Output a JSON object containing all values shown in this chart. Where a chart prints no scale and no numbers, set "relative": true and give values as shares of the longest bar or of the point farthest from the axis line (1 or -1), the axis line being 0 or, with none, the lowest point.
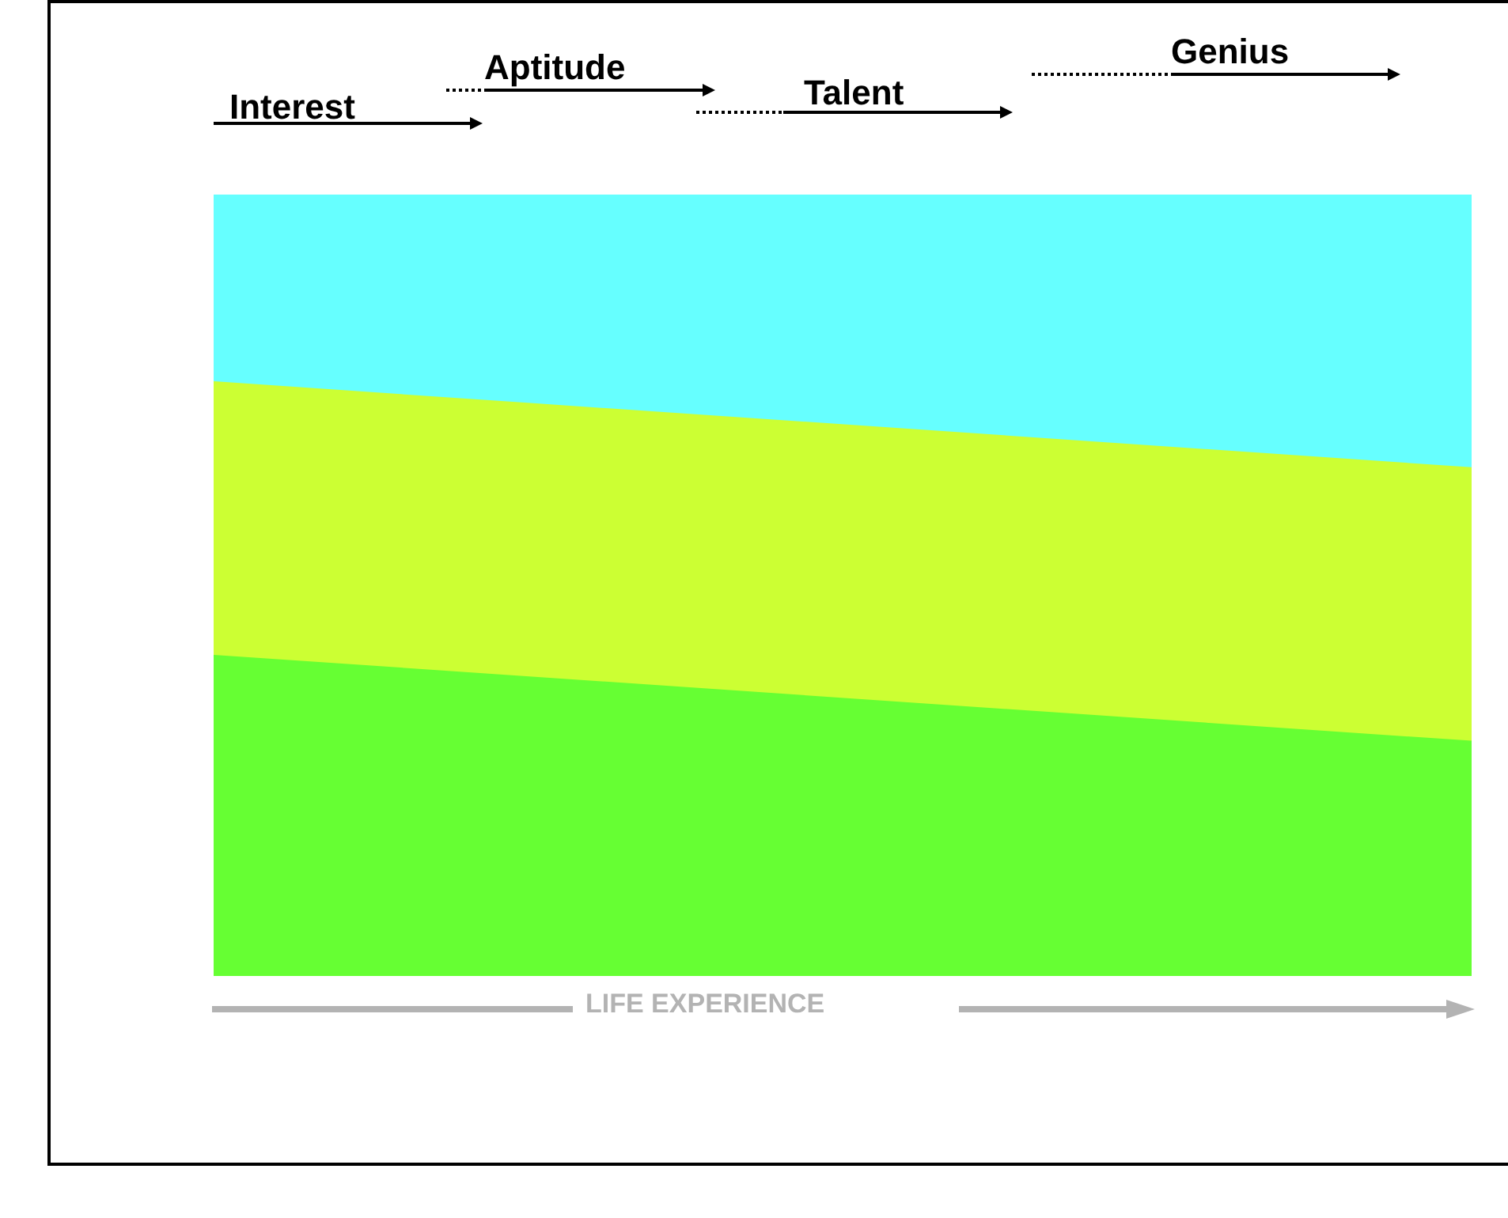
{
  "chart_data": {
    "type": "area",
    "relative": true,
    "stacked": true,
    "categories": [
      null,
      null
    ],
    "xlabel": "LIFE EXPERIENCE",
    "annotations": [
      "Interest",
      "Aptitude",
      "Talent",
      "Genius"
    ],
    "legend": false,
    "series": [
      {
        "color": "#66ff33",
        "values": [
          0.41,
          0.3
        ]
      },
      {
        "color": "#ccff33",
        "values": [
          0.35,
          0.35
        ]
      },
      {
        "color": "#66ffff",
        "values": [
          0.24,
          0.35
        ]
      }
    ]
  }
}
